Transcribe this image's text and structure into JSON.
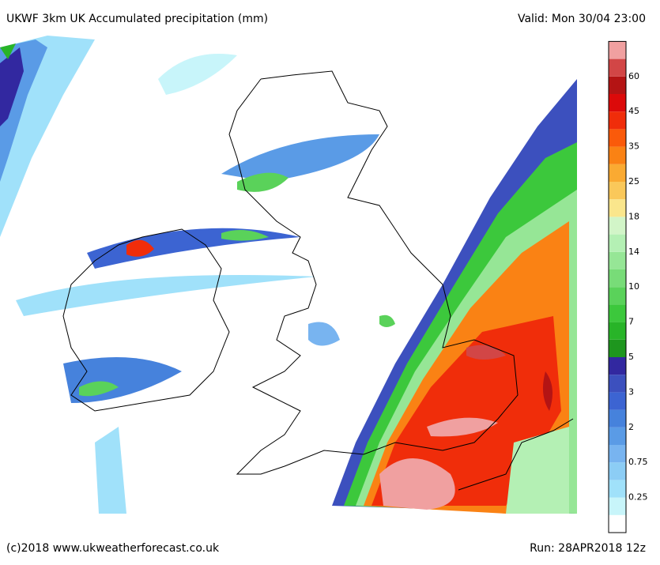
{
  "header": {
    "title": "UKWF 3km UK Accumulated precipitation (mm)",
    "valid": "Valid: Mon 30/04 23:00"
  },
  "legend": {
    "colors": [
      "#ffffff",
      "#c8f5fa",
      "#a0e1fa",
      "#8ccdf5",
      "#78b4f0",
      "#5a9be6",
      "#4682dc",
      "#3c64d2",
      "#3c50be",
      "#3228a0",
      "#1e961e",
      "#28b428",
      "#3cc83c",
      "#5ad25a",
      "#78dc78",
      "#96e696",
      "#b4f0b4",
      "#d2f5c8",
      "#fae68c",
      "#fac85a",
      "#faaa32",
      "#fa8214",
      "#fa5a0a",
      "#f02d0a",
      "#dc0a0a",
      "#b41414",
      "#d24646",
      "#f0a0a0"
    ],
    "labels": [
      "0.25",
      "0.75",
      "2",
      "3",
      "5",
      "7",
      "10",
      "14",
      "18",
      "25",
      "35",
      "45",
      "60"
    ]
  },
  "footer": {
    "copyright": "(c)2018 www.ukweatherforecast.co.uk",
    "run": "Run: 28APR2018 12z"
  }
}
